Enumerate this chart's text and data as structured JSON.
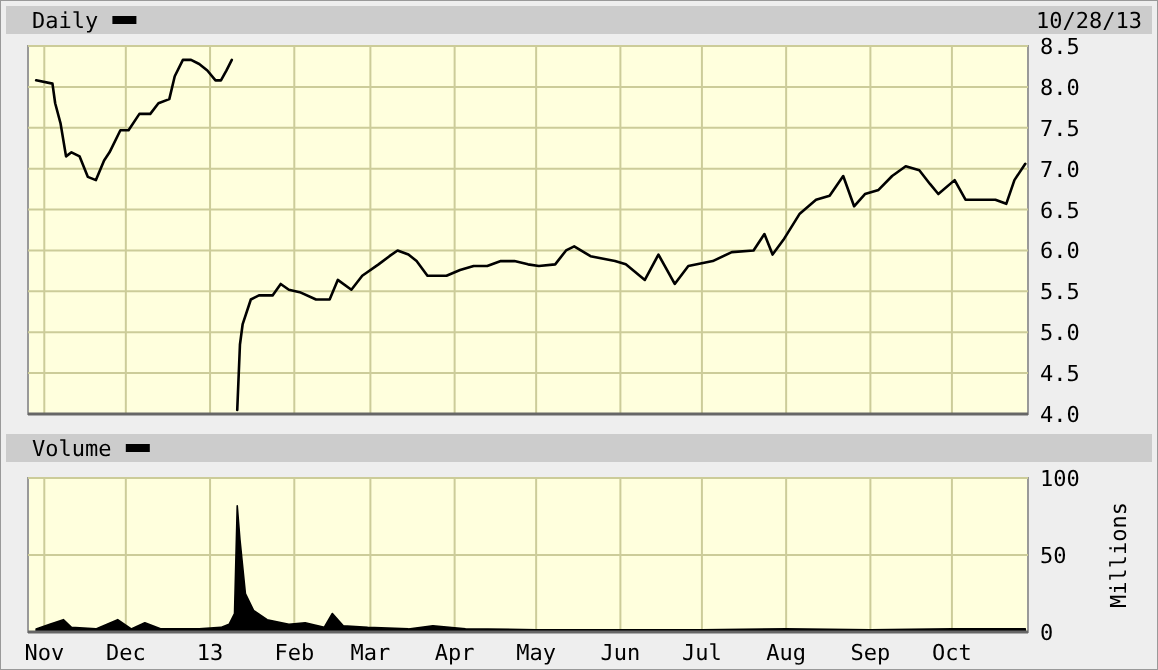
{
  "chart_data": [
    {
      "type": "line",
      "title": "Daily",
      "annotations": [
        "10/28/13"
      ],
      "xlim": [
        "2012-10-26",
        "2013-10-29"
      ],
      "xticks": [
        {
          "value": "2012-11-01",
          "label": null
        },
        {
          "value": "2012-12-01",
          "label": null
        },
        {
          "value": "2013-01-01",
          "label": null
        },
        {
          "value": "2013-02-01",
          "label": null
        },
        {
          "value": "2013-03-01",
          "label": null
        },
        {
          "value": "2013-04-01",
          "label": null
        },
        {
          "value": "2013-05-01",
          "label": null
        },
        {
          "value": "2013-06-01",
          "label": null
        },
        {
          "value": "2013-07-01",
          "label": null
        },
        {
          "value": "2013-08-01",
          "label": null
        },
        {
          "value": "2013-09-01",
          "label": null
        },
        {
          "value": "2013-10-01",
          "label": null
        }
      ],
      "ylim": [
        4,
        8.5
      ],
      "yticks": [
        {
          "value": 4,
          "label": "4.0"
        },
        {
          "value": 4.5,
          "label": "4.5"
        },
        {
          "value": 5,
          "label": "5.0"
        },
        {
          "value": 5.5,
          "label": "5.5"
        },
        {
          "value": 6,
          "label": "6.0"
        },
        {
          "value": 6.5,
          "label": "6.5"
        },
        {
          "value": 7,
          "label": "7.0"
        },
        {
          "value": 7.5,
          "label": "7.5"
        },
        {
          "value": 8,
          "label": "8.0"
        },
        {
          "value": 8.5,
          "label": "8.5"
        }
      ],
      "grid": true,
      "tick_labels": "y",
      "line_style": "solid",
      "x": [
        "2012-10-29",
        "2012-11-04",
        "2012-11-05",
        "2012-11-07",
        "2012-11-09",
        "2012-11-11",
        "2012-11-14",
        "2012-11-17",
        "2012-11-20",
        "2012-11-23",
        "2012-11-25",
        "2012-11-29",
        "2012-12-02",
        "2012-12-06",
        "2012-12-10",
        "2012-12-13",
        "2012-12-17",
        "2012-12-19",
        "2012-12-22",
        "2012-12-25",
        "2012-12-28",
        "2012-12-31",
        "2013-01-03",
        "2013-01-05",
        "2013-01-07",
        "2013-01-09",
        "2013-01-10",
        "2013-01-11",
        "2013-01-12",
        "2013-01-13",
        "2013-01-16",
        "2013-01-19",
        "2013-01-24",
        "2013-01-27",
        "2013-01-30",
        "2013-02-03",
        "2013-02-09",
        "2013-02-14",
        "2013-02-17",
        "2013-02-22",
        "2013-02-26",
        "2013-03-04",
        "2013-03-08",
        "2013-03-11",
        "2013-03-15",
        "2013-03-18",
        "2013-03-22",
        "2013-03-26",
        "2013-03-29",
        "2013-04-03",
        "2013-04-08",
        "2013-04-13",
        "2013-04-18",
        "2013-04-23",
        "2013-04-28",
        "2013-05-02",
        "2013-05-08",
        "2013-05-12",
        "2013-05-15",
        "2013-05-21",
        "2013-05-30",
        "2013-06-03",
        "2013-06-10",
        "2013-06-15",
        "2013-06-21",
        "2013-06-26",
        "2013-07-05",
        "2013-07-12",
        "2013-07-20",
        "2013-07-24",
        "2013-07-27",
        "2013-07-31",
        "2013-08-06",
        "2013-08-12",
        "2013-08-17",
        "2013-08-22",
        "2013-08-26",
        "2013-08-30",
        "2013-09-04",
        "2013-09-09",
        "2013-09-14",
        "2013-09-19",
        "2013-09-23",
        "2013-09-26",
        "2013-10-02",
        "2013-10-06",
        "2013-10-11",
        "2013-10-17",
        "2013-10-21",
        "2013-10-24",
        "2013-10-28"
      ],
      "series": [
        {
          "color": "#000000",
          "values": [
            8.08,
            8.04,
            7.8,
            7.55,
            7.15,
            7.2,
            7.15,
            6.9,
            6.86,
            7.1,
            7.2,
            7.47,
            7.47,
            7.67,
            7.67,
            7.8,
            7.85,
            8.13,
            8.33,
            8.33,
            8.28,
            8.2,
            8.08,
            8.08,
            8.2,
            8.33,
            null,
            4.05,
            4.85,
            5.1,
            5.4,
            5.45,
            5.45,
            5.59,
            5.52,
            5.49,
            5.4,
            5.4,
            5.64,
            5.52,
            5.69,
            5.83,
            5.93,
            6.0,
            5.95,
            5.87,
            5.69,
            5.69,
            5.69,
            5.76,
            5.81,
            5.81,
            5.87,
            5.87,
            5.83,
            5.81,
            5.83,
            6.0,
            6.05,
            5.93,
            5.87,
            5.83,
            5.64,
            5.95,
            5.59,
            5.81,
            5.87,
            5.98,
            6.0,
            6.2,
            5.95,
            6.13,
            6.45,
            6.62,
            6.67,
            6.91,
            6.54,
            6.69,
            6.74,
            6.91,
            7.03,
            6.98,
            6.81,
            6.69,
            6.86,
            6.62,
            6.62,
            6.62,
            6.57,
            6.86,
            7.06
          ]
        }
      ]
    },
    {
      "type": "area",
      "title": "Volume",
      "ylabel": "Millions",
      "xlim": [
        "2012-10-26",
        "2013-10-29"
      ],
      "xticks": [
        {
          "value": "2012-11-01",
          "label": "Nov"
        },
        {
          "value": "2012-12-01",
          "label": "Dec"
        },
        {
          "value": "2013-01-01",
          "label": "13"
        },
        {
          "value": "2013-02-01",
          "label": "Feb"
        },
        {
          "value": "2013-03-01",
          "label": "Mar"
        },
        {
          "value": "2013-04-01",
          "label": "Apr"
        },
        {
          "value": "2013-05-01",
          "label": "May"
        },
        {
          "value": "2013-06-01",
          "label": "Jun"
        },
        {
          "value": "2013-07-01",
          "label": "Jul"
        },
        {
          "value": "2013-08-01",
          "label": "Aug"
        },
        {
          "value": "2013-09-01",
          "label": "Sep"
        },
        {
          "value": "2013-10-01",
          "label": "Oct"
        }
      ],
      "ylim": [
        0,
        100
      ],
      "yticks": [
        0,
        50,
        100
      ],
      "grid": true,
      "x": [
        "2012-10-29",
        "2012-11-03",
        "2012-11-08",
        "2012-11-11",
        "2012-11-20",
        "2012-11-28",
        "2012-12-03",
        "2012-12-08",
        "2012-12-14",
        "2012-12-28",
        "2013-01-05",
        "2013-01-08",
        "2013-01-10",
        "2013-01-11",
        "2013-01-12",
        "2013-01-14",
        "2013-01-17",
        "2013-01-22",
        "2013-01-30",
        "2013-02-05",
        "2013-02-12",
        "2013-02-15",
        "2013-02-19",
        "2013-02-28",
        "2013-03-15",
        "2013-03-24",
        "2013-04-05",
        "2013-05-01",
        "2013-06-01",
        "2013-07-01",
        "2013-08-01",
        "2013-09-01",
        "2013-10-01",
        "2013-10-28"
      ],
      "series": [
        {
          "color": "#000000",
          "values": [
            2,
            5,
            8,
            3,
            2,
            8,
            2,
            6,
            2,
            2,
            3,
            5,
            12,
            82,
            60,
            25,
            14,
            8,
            5,
            6,
            3,
            12,
            4,
            3,
            2,
            4,
            2,
            1.5,
            1.5,
            1.5,
            2,
            1.5,
            2,
            2
          ]
        }
      ]
    }
  ]
}
